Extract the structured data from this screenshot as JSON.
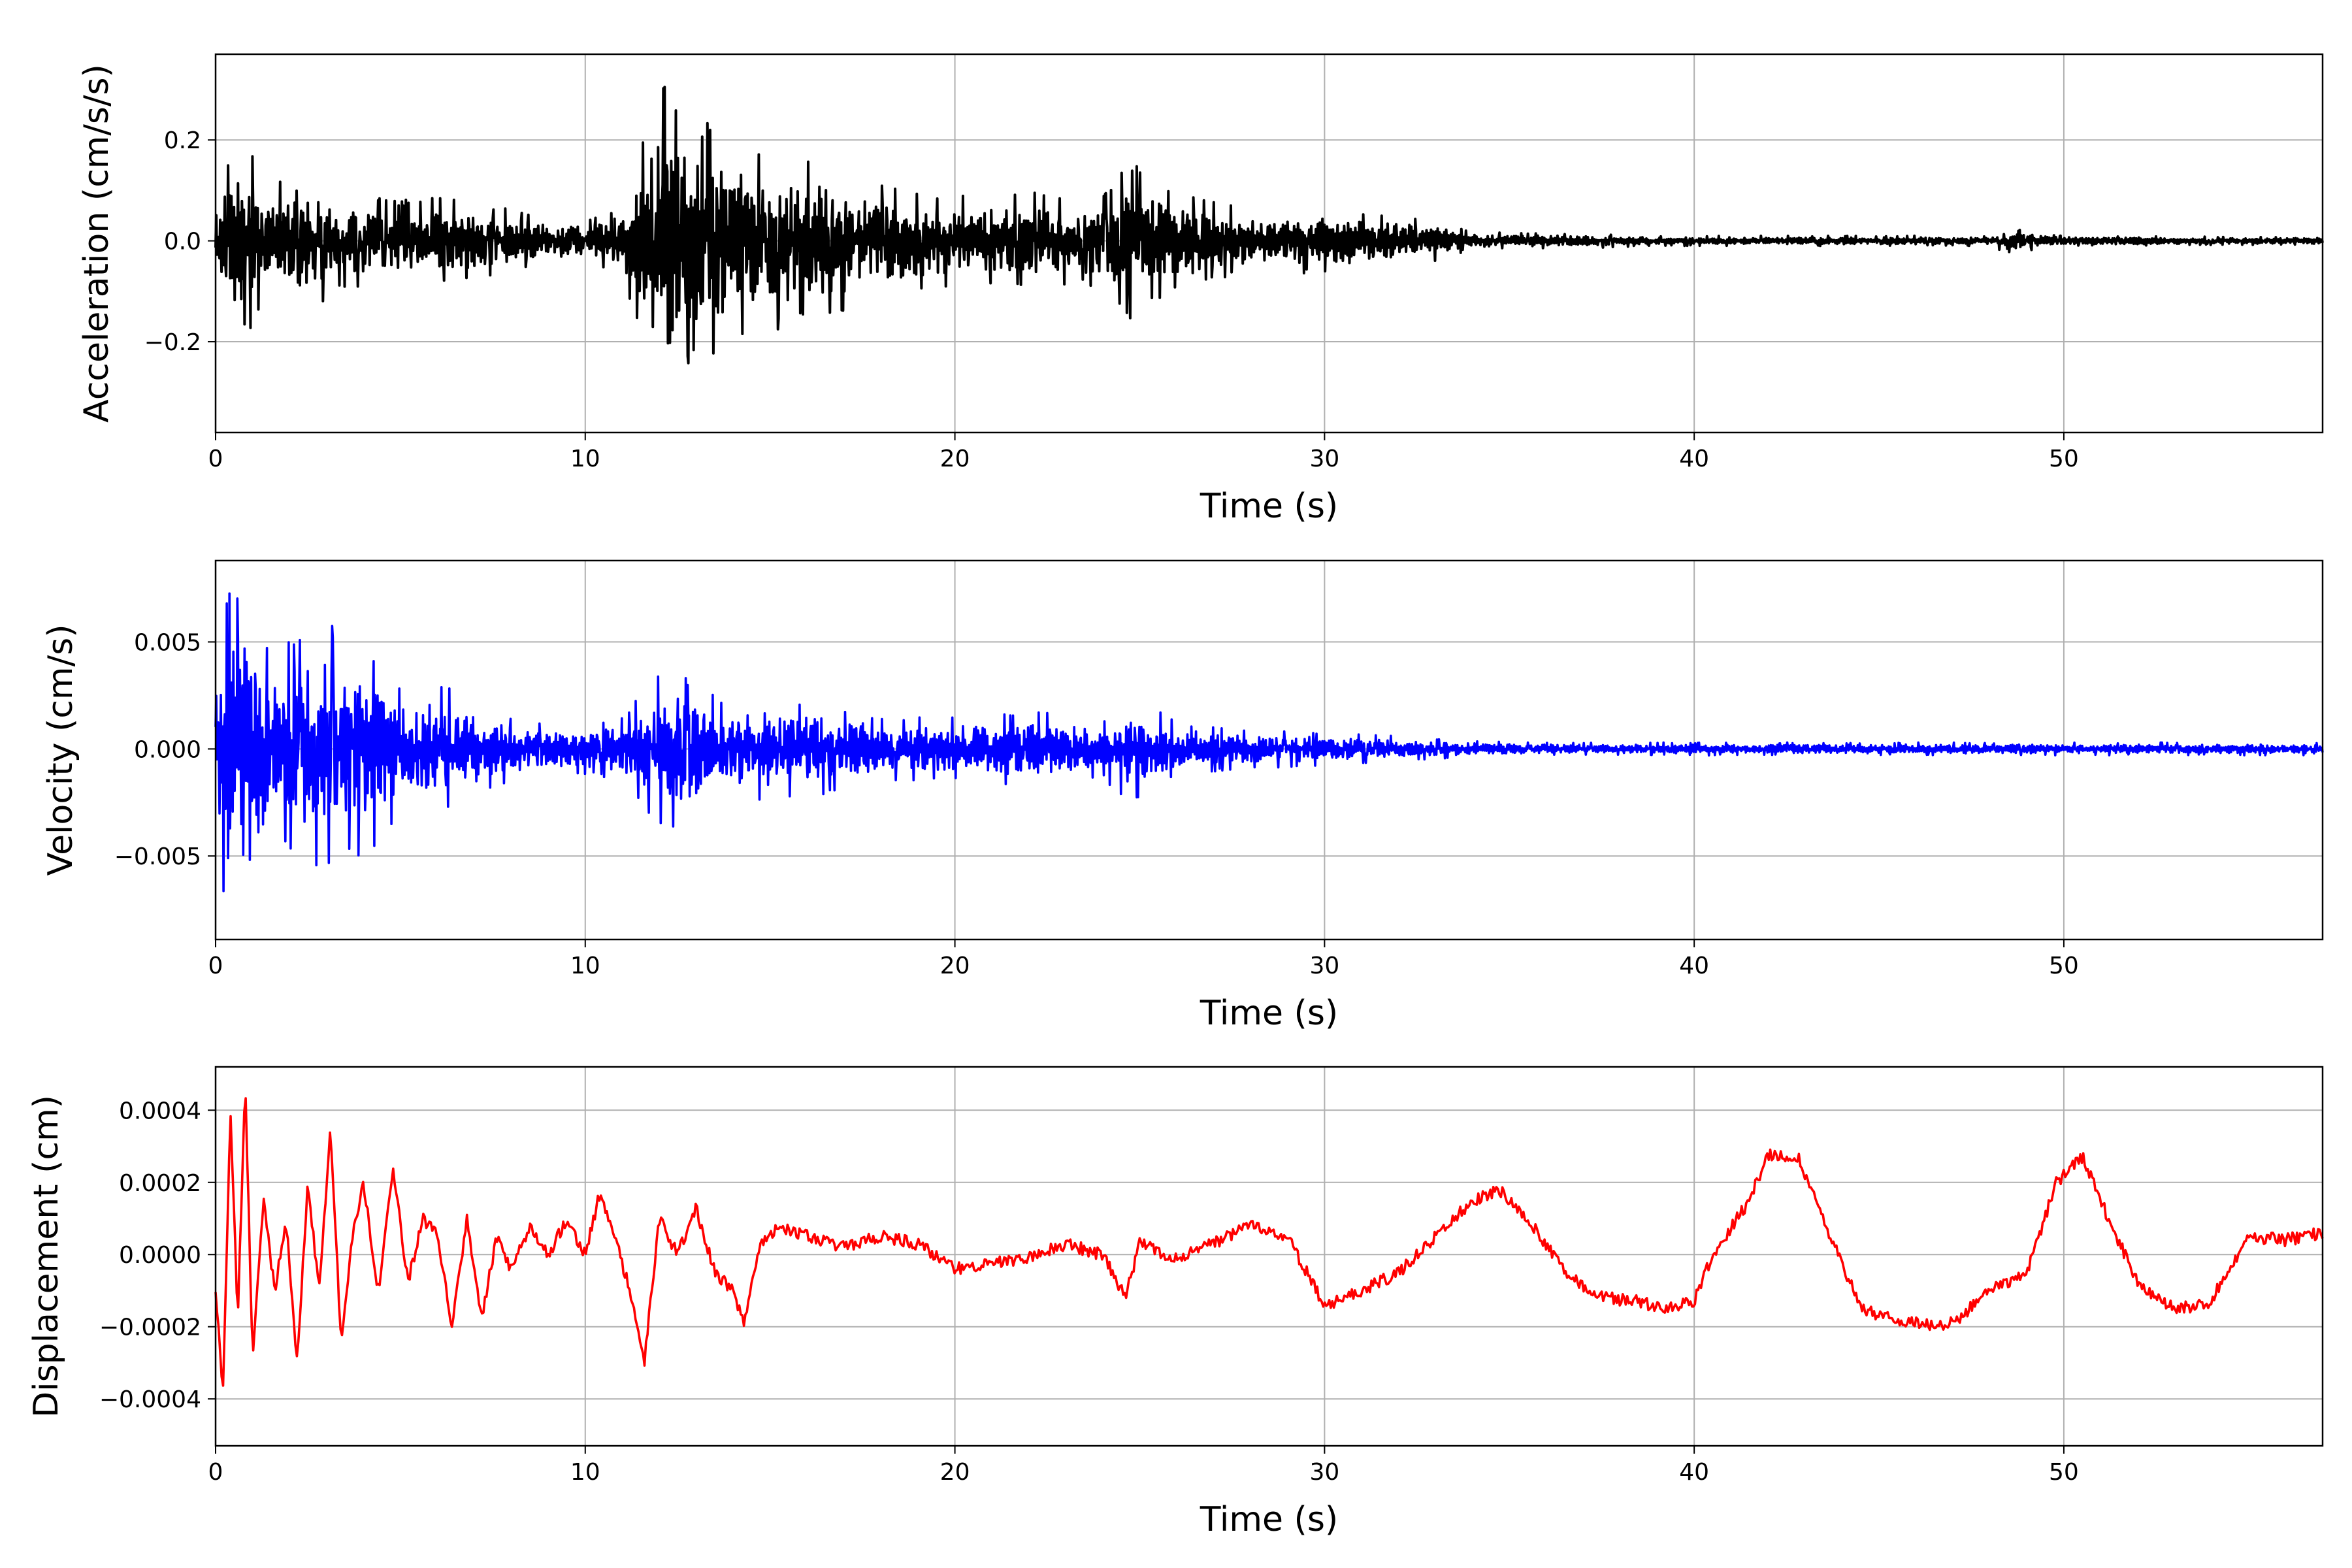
{
  "chart_data": [
    {
      "type": "line",
      "xlabel": "Time (s)",
      "ylabel": "Acceleration (cm/s/s)",
      "xlim": [
        0,
        57
      ],
      "ylim": [
        -0.38,
        0.37
      ],
      "xticks": [
        0,
        10,
        20,
        30,
        40,
        50
      ],
      "xtick_labels": [
        "0",
        "10",
        "20",
        "30",
        "40",
        "50"
      ],
      "yticks": [
        -0.2,
        0.0,
        0.2
      ],
      "ytick_labels": [
        "−0.2",
        "0.0",
        "0.2"
      ],
      "grid": true,
      "color": "#000000",
      "series": [
        {
          "x": [
            0.0,
            0.25,
            0.6,
            0.9,
            1.5,
            2.3,
            3.2,
            4.2,
            5.0,
            6.2,
            7.5,
            9.0,
            10.0,
            11.0,
            11.8,
            12.2,
            12.4,
            12.6,
            13.0,
            14.0,
            15.0,
            16.0,
            17.0,
            18.0,
            19.0,
            20.0,
            21.0,
            22.0,
            23.0,
            24.0,
            24.7,
            25.0,
            26.0,
            27.0,
            28.0,
            29.0,
            30.0,
            31.0,
            32.0,
            33.0,
            34.0,
            35.0,
            36.0,
            37.0,
            38.0,
            39.0,
            40.0,
            42.0,
            44.0,
            46.0,
            48.0,
            48.5,
            50.0,
            52.0,
            54.0,
            57.0
          ],
          "amp": [
            0.08,
            0.14,
            0.2,
            0.19,
            0.1,
            0.16,
            0.1,
            0.09,
            0.08,
            0.09,
            0.07,
            0.05,
            0.04,
            0.07,
            0.25,
            0.34,
            0.31,
            0.26,
            0.24,
            0.22,
            0.18,
            0.16,
            0.15,
            0.12,
            0.1,
            0.09,
            0.09,
            0.1,
            0.09,
            0.09,
            0.17,
            0.14,
            0.1,
            0.08,
            0.06,
            0.06,
            0.07,
            0.06,
            0.05,
            0.04,
            0.02,
            0.015,
            0.015,
            0.015,
            0.012,
            0.01,
            0.01,
            0.01,
            0.01,
            0.01,
            0.01,
            0.025,
            0.01,
            0.01,
            0.008,
            0.008
          ]
        }
      ]
    },
    {
      "type": "line",
      "xlabel": "Time (s)",
      "ylabel": "Velocity (cm/s)",
      "xlim": [
        0,
        57
      ],
      "ylim": [
        -0.0089,
        0.0088
      ],
      "xticks": [
        0,
        10,
        20,
        30,
        40,
        50
      ],
      "xtick_labels": [
        "0",
        "10",
        "20",
        "30",
        "40",
        "50"
      ],
      "yticks": [
        -0.005,
        0.0,
        0.005
      ],
      "ytick_labels": [
        "−0.005",
        "0.000",
        "0.005"
      ],
      "grid": true,
      "color": "#0000ff",
      "series": [
        {
          "x": [
            0.0,
            0.25,
            0.5,
            0.9,
            1.5,
            2.3,
            3.2,
            4.2,
            5.0,
            6.2,
            7.5,
            9.0,
            10.0,
            11.0,
            11.8,
            12.2,
            12.6,
            13.5,
            15.0,
            16.5,
            18.0,
            20.0,
            22.0,
            24.0,
            24.7,
            26.0,
            28.0,
            30.0,
            32.0,
            34.0,
            36.0,
            38.0,
            40.0,
            42.0,
            44.0,
            46.0,
            48.0,
            50.0,
            52.0,
            54.0,
            57.0
          ],
          "amp": [
            0.005,
            0.007,
            0.008,
            0.008,
            0.004,
            0.0058,
            0.0058,
            0.005,
            0.003,
            0.003,
            0.0018,
            0.0012,
            0.0012,
            0.0015,
            0.0032,
            0.004,
            0.0035,
            0.0025,
            0.0025,
            0.0022,
            0.0015,
            0.0015,
            0.0018,
            0.0014,
            0.0025,
            0.0013,
            0.0009,
            0.0008,
            0.0006,
            0.0004,
            0.0003,
            0.0003,
            0.0003,
            0.0003,
            0.0003,
            0.0003,
            0.0003,
            0.0003,
            0.0003,
            0.0003,
            0.0003
          ]
        }
      ]
    },
    {
      "type": "line",
      "xlabel": "Time (s)",
      "ylabel": "Displacement (cm)",
      "xlim": [
        0,
        57
      ],
      "ylim": [
        -0.00053,
        0.00052
      ],
      "xticks": [
        0,
        10,
        20,
        30,
        40,
        50
      ],
      "xtick_labels": [
        "0",
        "10",
        "20",
        "30",
        "40",
        "50"
      ],
      "yticks": [
        -0.0004,
        -0.0002,
        0.0,
        0.0002,
        0.0004
      ],
      "ytick_labels": [
        "−0.0004",
        "−0.0002",
        "0.0000",
        "0.0002",
        "0.0004"
      ],
      "grid": true,
      "color": "#ff0000",
      "series": [
        {
          "x": [
            0.0,
            0.2,
            0.4,
            0.6,
            0.8,
            1.0,
            1.3,
            1.6,
            1.9,
            2.2,
            2.5,
            2.8,
            3.1,
            3.4,
            3.7,
            4.0,
            4.4,
            4.8,
            5.2,
            5.6,
            6.0,
            6.4,
            6.8,
            7.2,
            7.6,
            8.0,
            8.5,
            9.0,
            9.5,
            10.0,
            10.4,
            10.8,
            11.2,
            11.6,
            12.0,
            12.5,
            13.0,
            13.5,
            14.0,
            14.3,
            14.7,
            15.2,
            16.0,
            17.0,
            18.0,
            19.0,
            20.0,
            21.0,
            22.0,
            23.0,
            24.0,
            24.6,
            25.0,
            26.0,
            27.0,
            28.0,
            29.0,
            30.0,
            31.0,
            32.0,
            33.0,
            34.0,
            34.7,
            35.5,
            36.5,
            37.5,
            38.5,
            39.3,
            40.0,
            40.5,
            41.5,
            42.0,
            42.8,
            43.5,
            44.5,
            45.5,
            46.5,
            47.0,
            48.0,
            49.0,
            49.8,
            50.5,
            51.2,
            52.0,
            53.0,
            53.9,
            55.0,
            56.0,
            57.0
          ],
          "y": [
            -0.0001,
            -0.00038,
            0.0004,
            -0.00018,
            0.00048,
            -0.00028,
            0.00015,
            -0.0001,
            0.0001,
            -0.0003,
            0.0002,
            -0.0001,
            0.00035,
            -0.00025,
            5e-05,
            0.0002,
            -0.0001,
            0.00024,
            -8e-05,
            0.0001,
            5e-05,
            -0.0002,
            0.0001,
            -0.00018,
            5e-05,
            -5e-05,
            8e-05,
            0.0,
            0.0001,
            0.0,
            0.00017,
            5e-05,
            -0.0001,
            -0.0003,
            0.0001,
            0.0,
            0.00013,
            -5e-05,
            -0.0001,
            -0.0002,
            2e-05,
            8e-05,
            5e-05,
            2e-05,
            5e-05,
            3e-05,
            -4e-05,
            -2e-05,
            -1e-05,
            3e-05,
            0.0,
            -0.00012,
            3e-05,
            -1e-05,
            3e-05,
            8e-05,
            5e-05,
            -0.00014,
            -0.0001,
            -5e-05,
            5e-05,
            0.00015,
            0.00018,
            0.0001,
            -5e-05,
            -0.00012,
            -0.00013,
            -0.00015,
            -0.00013,
            0.0,
            0.00015,
            0.00028,
            0.00027,
            0.0001,
            -0.00015,
            -0.00018,
            -0.0002,
            -0.00019,
            -0.0001,
            -5e-05,
            0.0002,
            0.00027,
            0.0001,
            -8e-05,
            -0.00015,
            -0.00014,
            5e-05,
            4e-05,
            6e-05
          ]
        }
      ]
    }
  ]
}
